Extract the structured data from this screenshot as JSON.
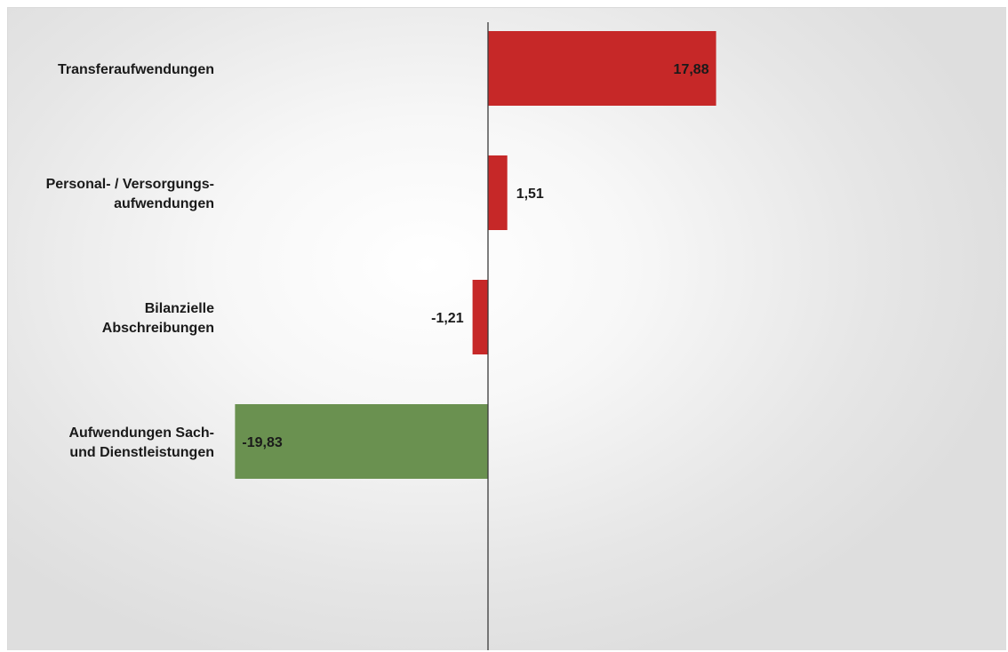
{
  "chart_data": {
    "type": "bar",
    "orientation": "horizontal",
    "categories": [
      [
        "Transferaufwendungen"
      ],
      [
        "Personal- / Versorgungs-",
        "aufwendungen"
      ],
      [
        "Bilanzielle",
        "Abschreibungen"
      ],
      [
        "Aufwendungen Sach-",
        "und Dienstleistungen"
      ]
    ],
    "values": [
      17.88,
      1.51,
      -1.21,
      -19.83
    ],
    "value_labels": [
      "17,88",
      "1,51",
      "-1,21",
      "-19,83"
    ],
    "colors": [
      "#c62828",
      "#c62828",
      "#c62828",
      "#6a9150"
    ],
    "title": "",
    "xlabel": "",
    "ylabel": "",
    "xlim": [
      -20,
      20
    ],
    "grid": false,
    "legend": "none"
  }
}
